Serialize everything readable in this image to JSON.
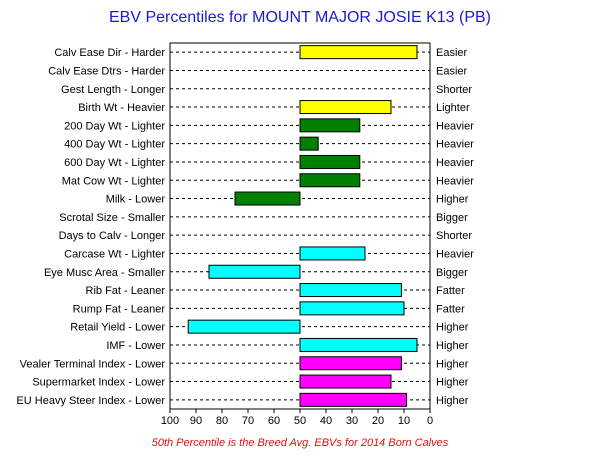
{
  "chart_data": {
    "type": "bar",
    "title": "EBV Percentiles for MOUNT MAJOR JOSIE K13 (PB)",
    "footnote": "50th Percentile is the Breed Avg. EBVs for 2014 Born Calves",
    "xlim": [
      100,
      0
    ],
    "x_reversed": true,
    "x_ticks": [
      100,
      90,
      80,
      70,
      60,
      50,
      40,
      30,
      20,
      10,
      0
    ],
    "baseline": 50,
    "grid": "dashed horizontal per trait",
    "traits": [
      {
        "left": "Calv Ease Dir - Harder",
        "right": "Easier",
        "value": 5,
        "color": "#ffff00"
      },
      {
        "left": "Calv Ease Dtrs - Harder",
        "right": "Easier",
        "value": null,
        "color": null
      },
      {
        "left": "Gest Length - Longer",
        "right": "Shorter",
        "value": null,
        "color": null
      },
      {
        "left": "Birth Wt - Heavier",
        "right": "Lighter",
        "value": 15,
        "color": "#ffff00"
      },
      {
        "left": "200 Day Wt - Lighter",
        "right": "Heavier",
        "value": 27,
        "color": "#008000"
      },
      {
        "left": "400 Day Wt - Lighter",
        "right": "Heavier",
        "value": 43,
        "color": "#008000"
      },
      {
        "left": "600 Day Wt - Lighter",
        "right": "Heavier",
        "value": 27,
        "color": "#008000"
      },
      {
        "left": "Mat Cow Wt - Lighter",
        "right": "Heavier",
        "value": 27,
        "color": "#008000"
      },
      {
        "left": "Milk - Lower",
        "right": "Higher",
        "value": 75,
        "color": "#008000"
      },
      {
        "left": "Scrotal Size - Smaller",
        "right": "Bigger",
        "value": null,
        "color": null
      },
      {
        "left": "Days to Calv - Longer",
        "right": "Shorter",
        "value": null,
        "color": null
      },
      {
        "left": "Carcase Wt - Lighter",
        "right": "Heavier",
        "value": 25,
        "color": "#00ffff"
      },
      {
        "left": "Eye Musc Area - Smaller",
        "right": "Bigger",
        "value": 85,
        "color": "#00ffff"
      },
      {
        "left": "Rib Fat - Leaner",
        "right": "Fatter",
        "value": 11,
        "color": "#00ffff"
      },
      {
        "left": "Rump Fat - Leaner",
        "right": "Fatter",
        "value": 10,
        "color": "#00ffff"
      },
      {
        "left": "Retail Yield - Lower",
        "right": "Higher",
        "value": 93,
        "color": "#00ffff"
      },
      {
        "left": "IMF - Lower",
        "right": "Higher",
        "value": 5,
        "color": "#00ffff"
      },
      {
        "left": "Vealer Terminal Index - Lower",
        "right": "Higher",
        "value": 11,
        "color": "#ff00ff"
      },
      {
        "left": "Supermarket Index - Lower",
        "right": "Higher",
        "value": 15,
        "color": "#ff00ff"
      },
      {
        "left": "EU Heavy Steer Index - Lower",
        "right": "Higher",
        "value": 9,
        "color": "#ff00ff"
      }
    ]
  }
}
